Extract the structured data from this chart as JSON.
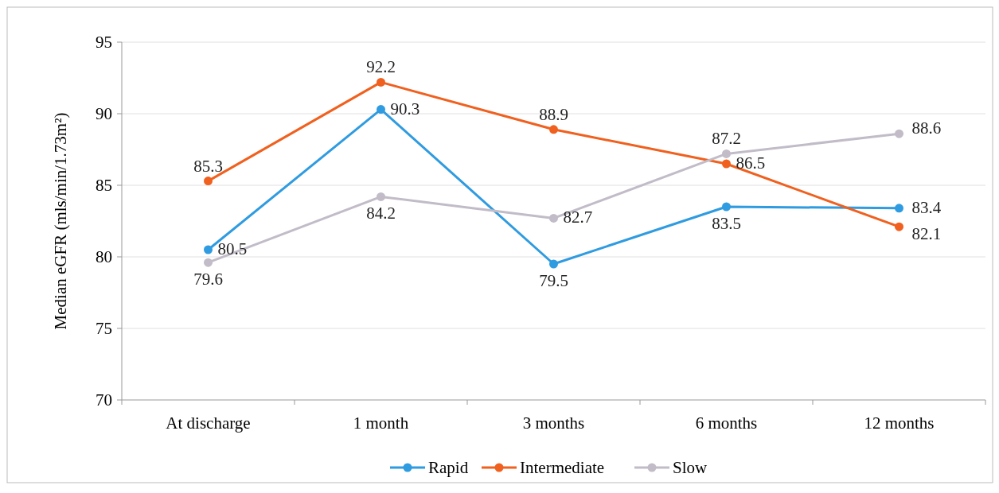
{
  "chart_data": {
    "type": "line",
    "ylabel": "Median eGFR (mls/min/1.73m²)",
    "categories": [
      "At discharge",
      "1 month",
      "3 months",
      "6 months",
      "12 months"
    ],
    "series": [
      {
        "name": "Rapid",
        "color": "#2f9be0",
        "values": [
          80.5,
          90.3,
          79.5,
          83.5,
          83.4
        ]
      },
      {
        "name": "Intermediate",
        "color": "#f0601e",
        "values": [
          85.3,
          92.2,
          88.9,
          86.5,
          82.1
        ]
      },
      {
        "name": "Slow",
        "color": "#c2bcc8",
        "values": [
          79.6,
          84.2,
          82.7,
          87.2,
          88.6
        ]
      }
    ],
    "ylim": [
      70,
      95
    ],
    "yticks": [
      70,
      75,
      80,
      85,
      90,
      95
    ],
    "grid": "y",
    "legend": "bottom",
    "marker": "circle",
    "line_style": "solid",
    "data_labels": true
  }
}
